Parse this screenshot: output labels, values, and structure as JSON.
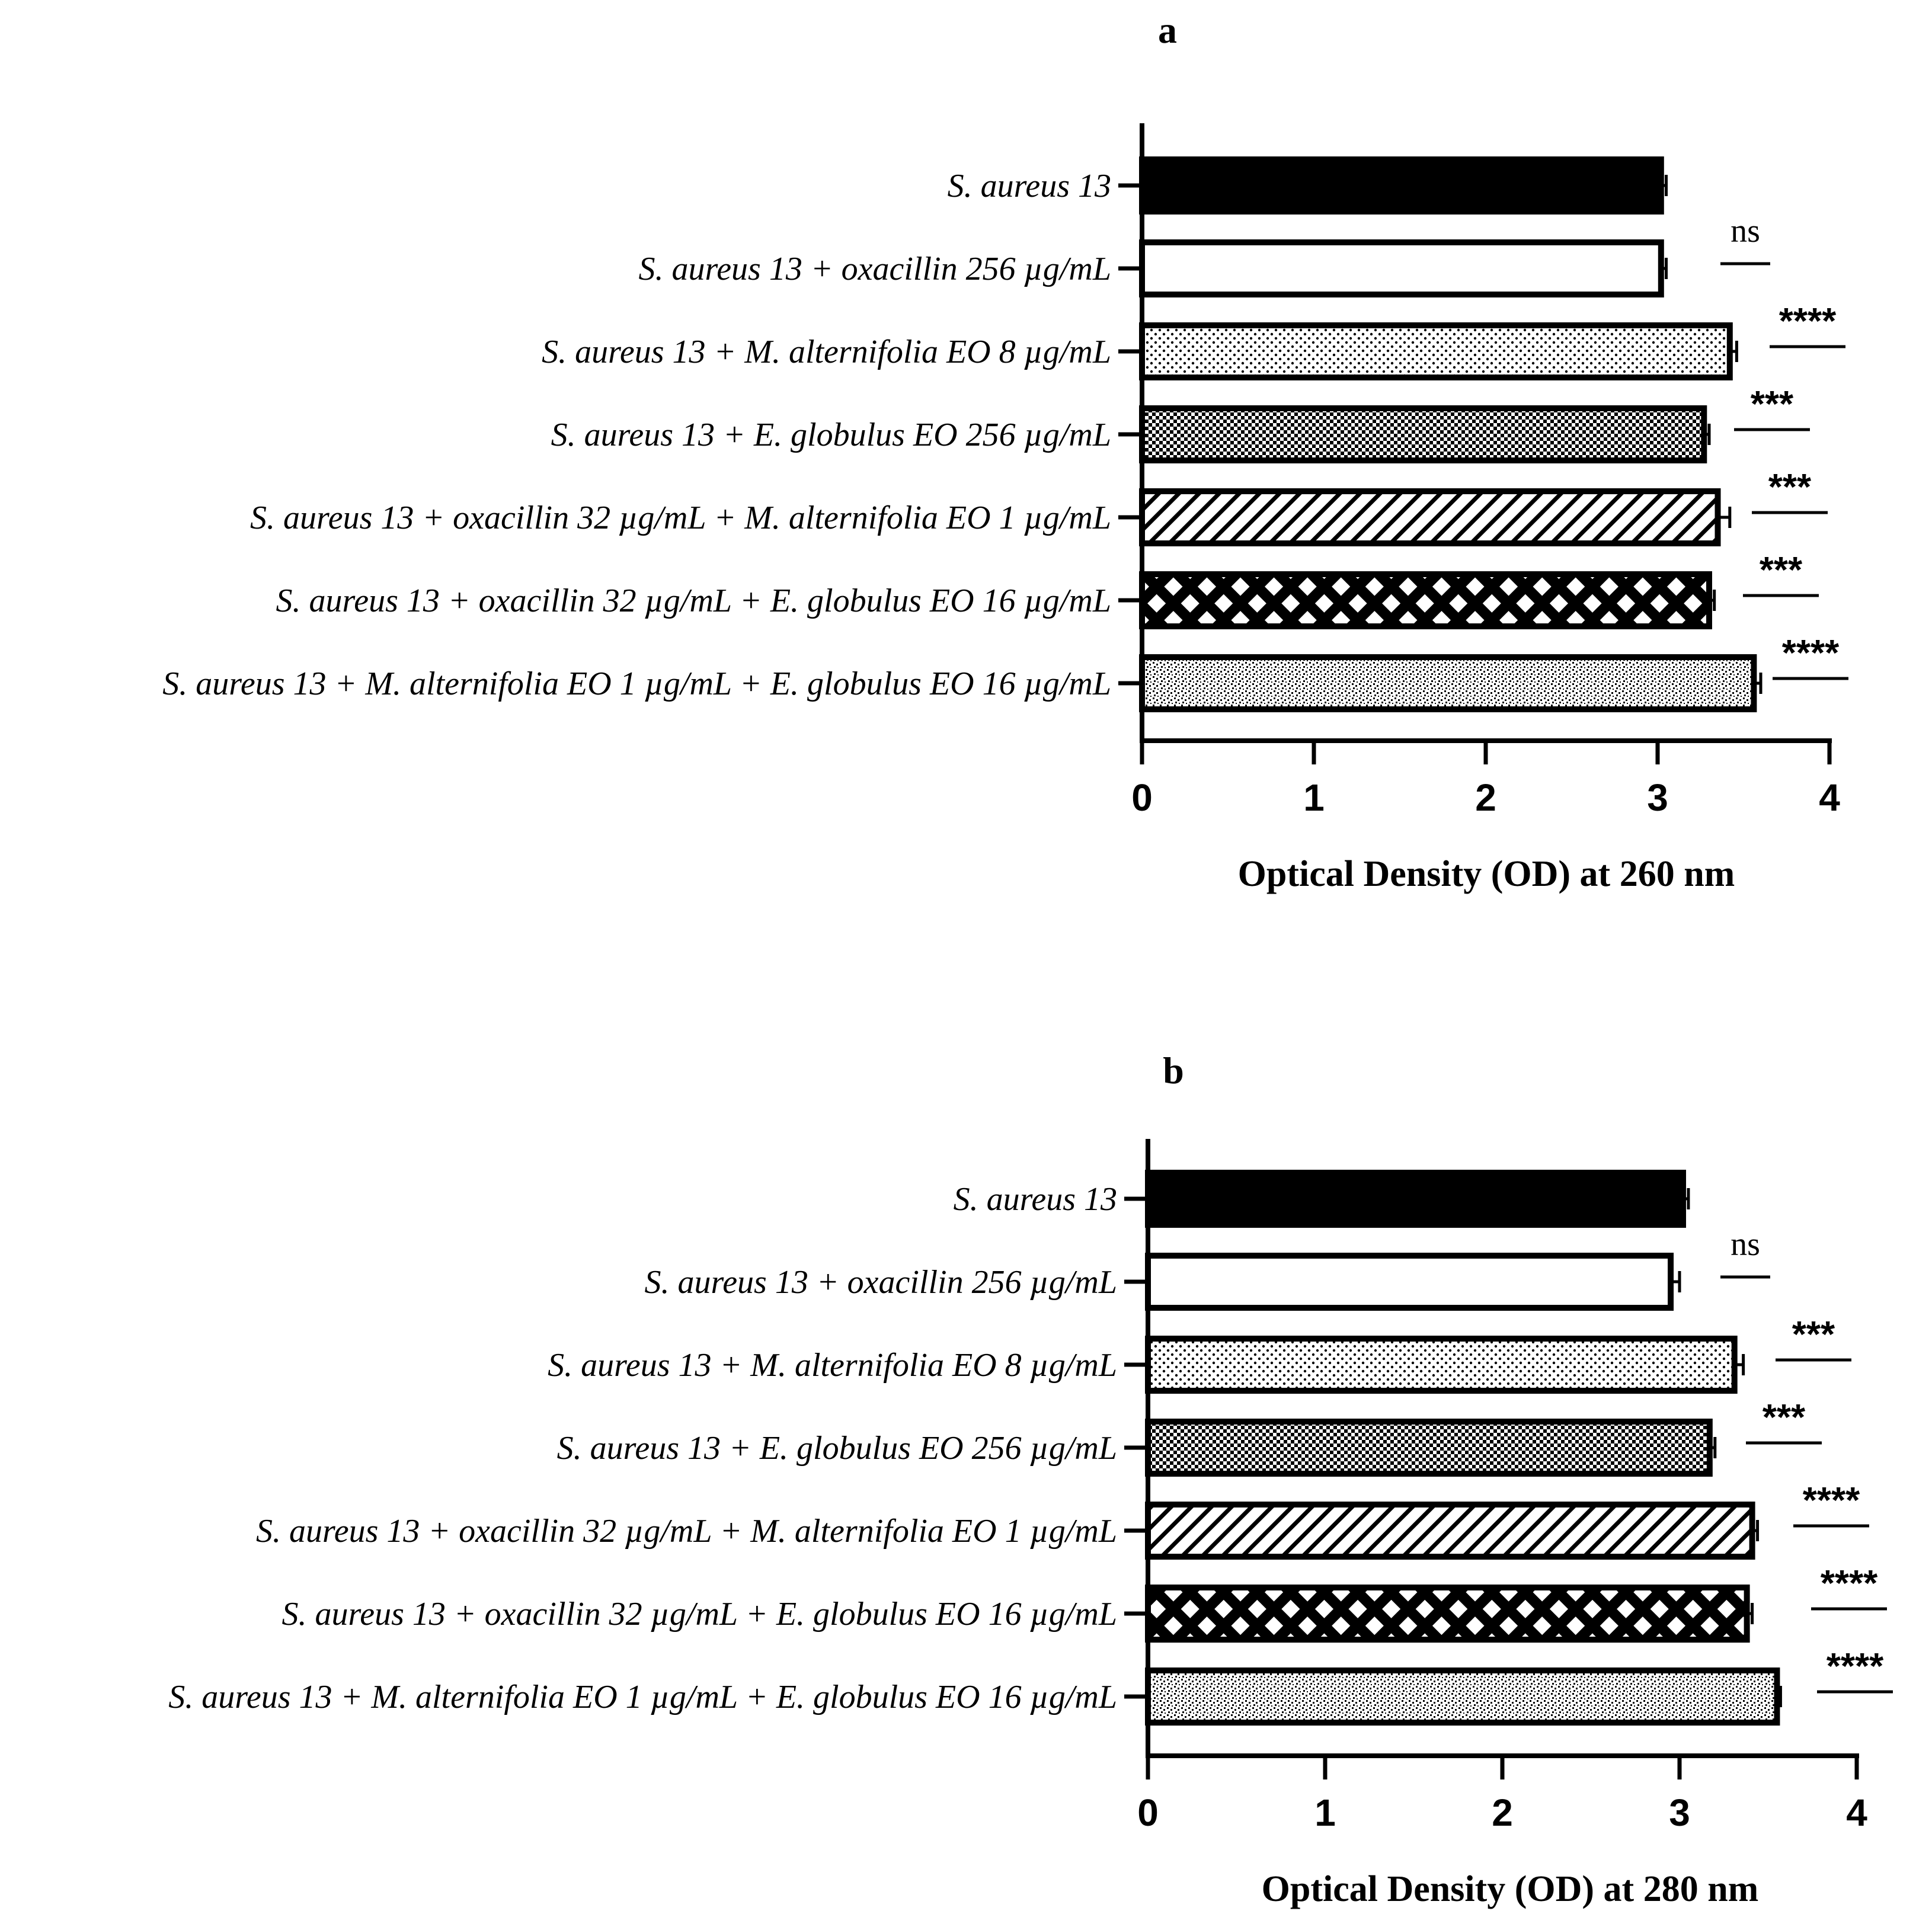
{
  "chart_data": [
    {
      "type": "bar",
      "orientation": "horizontal",
      "title": "a",
      "xlabel": "Optical Density (OD) at 260 nm",
      "ylabel": "",
      "xlim": [
        0,
        4
      ],
      "xticks": [
        "0",
        "1",
        "2",
        "3",
        "4"
      ],
      "grid": false,
      "categories": [
        "S. aureus 13",
        "S. aureus 13 + oxacillin 256 µg/mL",
        "S. aureus 13 + M. alternifolia EO 8 µg/mL",
        "S. aureus 13 + E. globulus EO 256 µg/mL",
        "S. aureus 13 + oxacillin 32 µg/mL + M. alternifolia EO 1 µg/mL",
        "S. aureus 13 + oxacillin 32 µg/mL + E. globulus EO 16 µg/mL",
        "S. aureus 13 + M. alternifolia EO 1 µg/mL + E. globulus EO 16 µg/mL"
      ],
      "values": [
        3.02,
        3.02,
        3.42,
        3.27,
        3.35,
        3.3,
        3.56
      ],
      "errors": [
        0.03,
        0.03,
        0.04,
        0.03,
        0.07,
        0.03,
        0.04
      ],
      "significance": [
        "",
        "ns",
        "****",
        "***",
        "***",
        "***",
        "****"
      ],
      "patterns": [
        "solid",
        "empty",
        "dots",
        "checker",
        "diagonal",
        "lattice",
        "speckle"
      ]
    },
    {
      "type": "bar",
      "orientation": "horizontal",
      "title": "b",
      "xlabel": "Optical Density (OD) at 280 nm",
      "ylabel": "",
      "xlim": [
        0,
        4
      ],
      "xticks": [
        "0",
        "1",
        "2",
        "3",
        "4"
      ],
      "grid": false,
      "categories": [
        "S. aureus 13",
        "S. aureus 13 + oxacillin 256 µg/mL",
        "S. aureus 13 + M. alternifolia EO 8 µg/mL",
        "S. aureus 13 + E. globulus EO 256 µg/mL",
        "S. aureus 13 + oxacillin 32 µg/mL + M. alternifolia EO 1 µg/mL",
        "S. aureus 13 + oxacillin 32 µg/mL + E. globulus EO 16 µg/mL",
        "S. aureus 13 + M. alternifolia EO 1 µg/mL + E. globulus EO 16 µg/mL"
      ],
      "values": [
        3.02,
        2.95,
        3.31,
        3.17,
        3.41,
        3.38,
        3.55
      ],
      "errors": [
        0.03,
        0.05,
        0.05,
        0.03,
        0.03,
        0.03,
        0.02
      ],
      "significance": [
        "",
        "ns",
        "***",
        "***",
        "****",
        "****",
        "****"
      ],
      "patterns": [
        "solid",
        "empty",
        "dots",
        "checker",
        "diagonal",
        "lattice",
        "speckle"
      ]
    }
  ]
}
